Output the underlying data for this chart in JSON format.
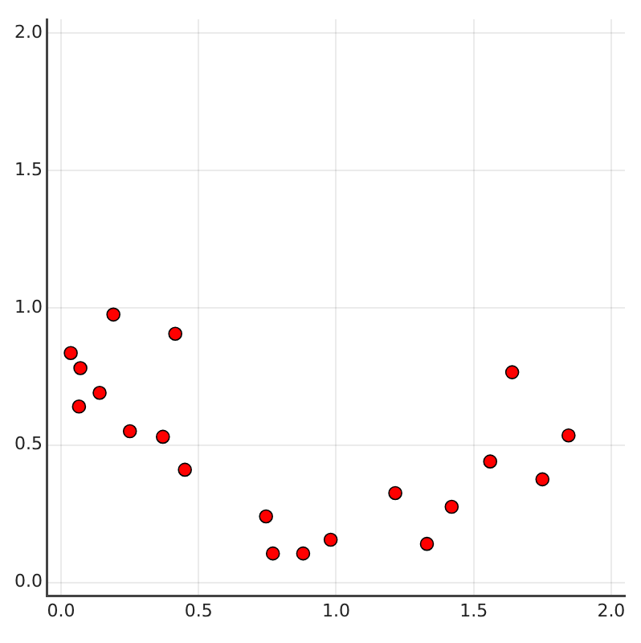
{
  "chart_data": {
    "type": "scatter",
    "x": [
      0.035,
      0.07,
      0.065,
      0.14,
      0.19,
      0.25,
      0.37,
      0.415,
      0.45,
      0.745,
      0.77,
      0.88,
      0.98,
      1.215,
      1.33,
      1.42,
      1.56,
      1.64,
      1.75,
      1.845
    ],
    "series": [
      {
        "color": "#ff0000",
        "values": [
          0.835,
          0.78,
          0.64,
          0.69,
          0.975,
          0.55,
          0.53,
          0.905,
          0.41,
          0.24,
          0.105,
          0.105,
          0.155,
          0.325,
          0.14,
          0.275,
          0.44,
          0.765,
          0.375,
          0.535
        ]
      }
    ],
    "xlim": [
      -0.05,
      2.05
    ],
    "ylim": [
      -0.05,
      2.05
    ],
    "xticks": [
      {
        "value": 0,
        "label": "0.0"
      },
      {
        "value": 0.5,
        "label": "0.5"
      },
      {
        "value": 1,
        "label": "1.0"
      },
      {
        "value": 1.5,
        "label": "1.5"
      },
      {
        "value": 2,
        "label": "2.0"
      }
    ],
    "yticks": [
      {
        "value": 0,
        "label": "0.0"
      },
      {
        "value": 0.5,
        "label": "0.5"
      },
      {
        "value": 1,
        "label": "1.0"
      },
      {
        "value": 1.5,
        "label": "1.5"
      },
      {
        "value": 2,
        "label": "2.0"
      }
    ],
    "grid": true,
    "legend": false,
    "marker": "circle"
  }
}
